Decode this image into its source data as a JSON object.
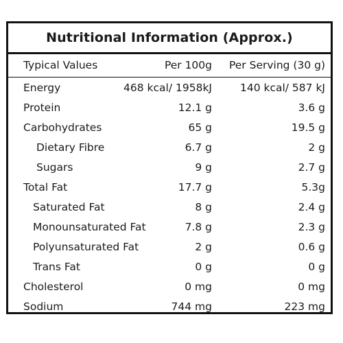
{
  "title": "Nutritional Information (Approx.)",
  "header": {
    "label": "Typical Values",
    "per100": "Per 100g",
    "per_serving": "Per Serving (30 g)"
  },
  "rows": [
    {
      "label": "Energy",
      "per100": "468 kcal/ 1958kJ",
      "per_serving": "140 kcal/ 587 kJ",
      "indent": 0
    },
    {
      "label": "Protein",
      "per100": "12.1 g",
      "per_serving": "3.6 g",
      "indent": 0
    },
    {
      "label": "Carbohydrates",
      "per100": "65 g",
      "per_serving": "19.5 g",
      "indent": 0
    },
    {
      "label": "Dietary Fibre",
      "per100": "6.7 g",
      "per_serving": "2 g",
      "indent": 2
    },
    {
      "label": "Sugars",
      "per100": "9 g",
      "per_serving": "2.7 g",
      "indent": 2
    },
    {
      "label": "Total Fat",
      "per100": "17.7 g",
      "per_serving": "5.3g",
      "indent": 0
    },
    {
      "label": "Saturated Fat",
      "per100": "8 g",
      "per_serving": "2.4 g",
      "indent": 1
    },
    {
      "label": "Monounsaturated Fat",
      "per100": "7.8 g",
      "per_serving": "2.3 g",
      "indent": 1
    },
    {
      "label": "Polyunsaturated Fat",
      "per100": "2 g",
      "per_serving": "0.6 g",
      "indent": 1
    },
    {
      "label": "Trans Fat",
      "per100": "0 g",
      "per_serving": "0 g",
      "indent": 1
    },
    {
      "label": "Cholesterol",
      "per100": "0 mg",
      "per_serving": "0 mg",
      "indent": 0
    },
    {
      "label": "Sodium",
      "per100": "744 mg",
      "per_serving": "223 mg",
      "indent": 0
    }
  ]
}
